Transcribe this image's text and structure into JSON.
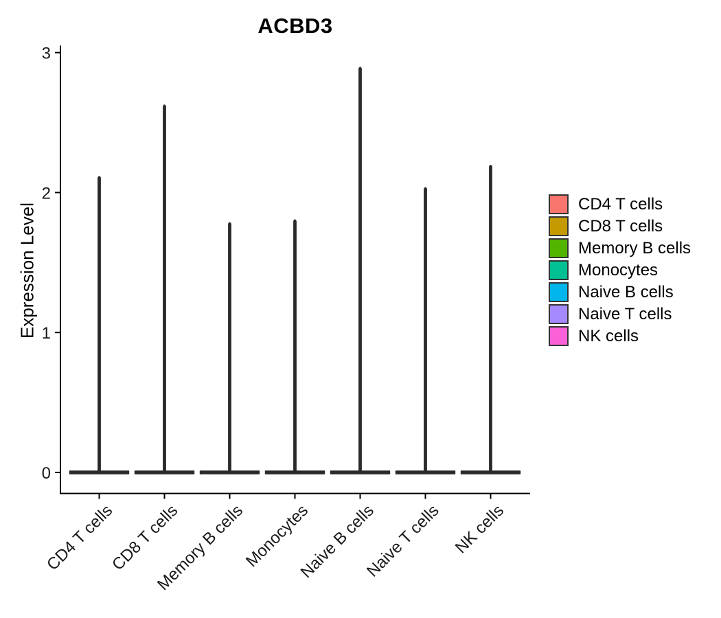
{
  "chart_data": {
    "type": "violin",
    "title": "ACBD3",
    "ylabel": "Expression Level",
    "xlabel": "",
    "categories": [
      "CD4 T cells",
      "CD8 T cells",
      "Memory B cells",
      "Monocytes",
      "Naive B cells",
      "Naive T cells",
      "NK cells"
    ],
    "series": [
      {
        "name": "CD4 T cells",
        "color": "#F8766D",
        "max_expression": 2.12
      },
      {
        "name": "CD8 T cells",
        "color": "#C49A00",
        "max_expression": 2.63
      },
      {
        "name": "Memory B cells",
        "color": "#53B400",
        "max_expression": 1.79
      },
      {
        "name": "Monocytes",
        "color": "#00C094",
        "max_expression": 1.81
      },
      {
        "name": "Naive B cells",
        "color": "#00B6EB",
        "max_expression": 2.9
      },
      {
        "name": "Naive T cells",
        "color": "#A58AFF",
        "max_expression": 2.04
      },
      {
        "name": "NK cells",
        "color": "#FB61D7",
        "max_expression": 2.2
      }
    ],
    "violin_shape": "density mass concentrated at 0 (wide flat base) with a thin spike rising to max_expression",
    "yticks": [
      "0",
      "1",
      "2",
      "3"
    ],
    "ylim": [
      -0.15,
      3.05
    ],
    "grid": false,
    "legend_position": "right",
    "outline_color": "#2a2a2a",
    "axis_color": "#000000"
  }
}
